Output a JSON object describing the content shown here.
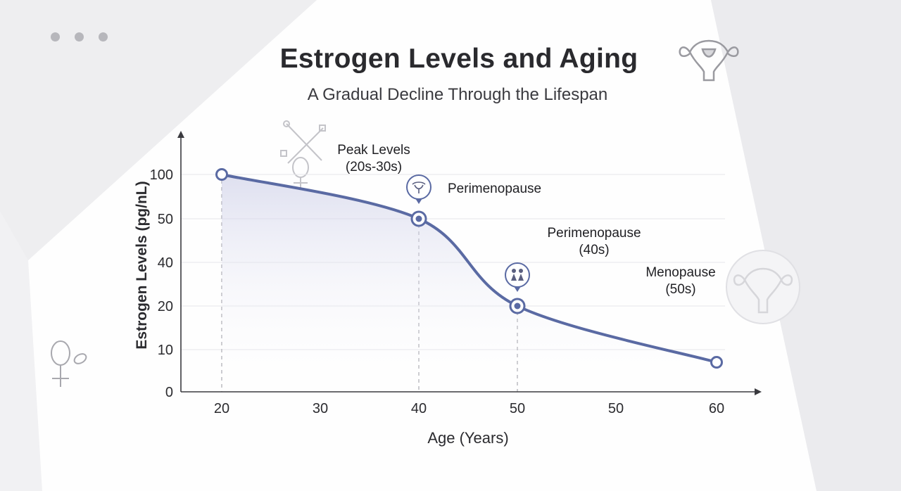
{
  "window_controls": [
    "dot-1",
    "dot-2",
    "dot-3"
  ],
  "title": "Estrogen Levels and Aging",
  "subtitle": "A Gradual Decline Through the Lifespan",
  "colors": {
    "line": "#5a6aa3",
    "marker_fill": "#ffffff",
    "grid": "#e6e6ea",
    "axis": "#3a3a3f",
    "dashed": "#b5b5bb"
  },
  "icons": [
    "window-dots",
    "uterus-icon",
    "female-symbol-icon",
    "medical-symbol-icon"
  ],
  "chart_data": {
    "type": "line",
    "xlabel": "Age (Years)",
    "ylabel": "Estrogen Levels (pg/nL)",
    "x_ticks": [
      "20",
      "30",
      "40",
      "50",
      "50",
      "60"
    ],
    "y_ticks": [
      "0",
      "10",
      "20",
      "40",
      "50",
      "100"
    ],
    "grid": true,
    "points": [
      {
        "x": "20",
        "y": 100
      },
      {
        "x": "40",
        "y": 50
      },
      {
        "x": "50",
        "y": 20
      },
      {
        "x": "60",
        "y": 7
      }
    ],
    "annotations": [
      {
        "lines": [
          "Peak Levels",
          "(20s-30s)"
        ]
      },
      {
        "lines": [
          "Perimenopause"
        ]
      },
      {
        "lines": [
          "Perimenopause",
          "(40s)"
        ]
      },
      {
        "lines": [
          "Menopause",
          "(50s)"
        ]
      }
    ]
  }
}
